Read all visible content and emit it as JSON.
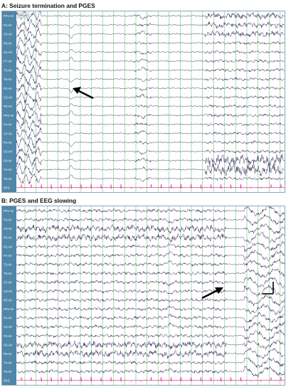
{
  "panels": [
    {
      "id": "A",
      "title": "A: Seizure termination and PGES",
      "channels": [
        "FP1-AV",
        "F3-AV",
        "C3-AV",
        "P3-AV",
        "O1-AV",
        "F7-AV",
        "T3-AV",
        "T5-AV",
        "FZ-AV",
        "CZ-AV",
        "PZ-AV",
        "FP2-AV",
        "F4-AV",
        "C4-AV",
        "P4-AV",
        "O2-AV",
        "F8-AV",
        "T4-AV",
        "T6-AV",
        "EKG"
      ],
      "header_note": "FP1-AV",
      "annotation": "arrow-pointing-left"
    },
    {
      "id": "B",
      "title": "B: PGES and EEG slowing",
      "channels": [
        "FP1-AV",
        "F3-AV",
        "C3-AV",
        "P3-AV",
        "O1-AV",
        "F7-AV",
        "T3-AV",
        "T5-AV",
        "FZ-AV",
        "CZ-AV",
        "PZ-AV",
        "FP2-AV",
        "F4-AV",
        "C4-AV",
        "P4-AV",
        "O2-AV",
        "F8-AV",
        "T4-AV",
        "T6-AV",
        "EKG"
      ],
      "annotation": "arrow-pointing-left",
      "scale_bar": true
    }
  ],
  "colors": {
    "trace": "#3a2a5a",
    "gridline": "#39b54a",
    "ekg": "#e0198a",
    "label_bg": "#4f86aa",
    "label_text": "#ffffff"
  }
}
